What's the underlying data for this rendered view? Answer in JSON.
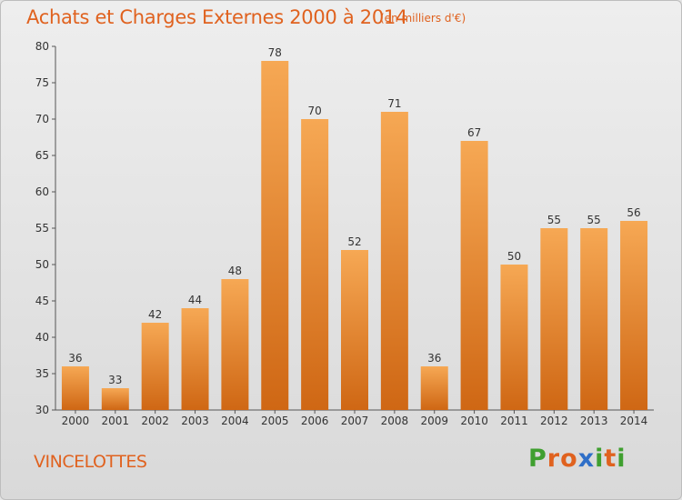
{
  "title": "Achats et Charges Externes 2000 à 2014",
  "unit": "(en milliers d'€)",
  "commune": "VINCELOTTES",
  "logo": {
    "letters": [
      "P",
      "r",
      "o",
      "x",
      "i",
      "t",
      "i"
    ]
  },
  "colors": {
    "bar_top": "#f6a854",
    "bar_bottom": "#cf6714",
    "title": "#e0621f",
    "axis": "#555555",
    "logo": [
      "#3f9f2f",
      "#e0621f",
      "#e0621f",
      "#2f6fc8",
      "#3f9f2f",
      "#e0621f",
      "#3f9f2f"
    ]
  },
  "chart_data": {
    "type": "bar",
    "title": "Achats et Charges Externes 2000 à 2014",
    "subtitle": "(en milliers d'€)",
    "categories": [
      "2000",
      "2001",
      "2002",
      "2003",
      "2004",
      "2005",
      "2006",
      "2007",
      "2008",
      "2009",
      "2010",
      "2011",
      "2012",
      "2013",
      "2014"
    ],
    "values": [
      36,
      33,
      42,
      44,
      48,
      78,
      70,
      52,
      71,
      36,
      67,
      50,
      55,
      55,
      56
    ],
    "ylim": [
      30,
      80
    ],
    "yticks": [
      30,
      35,
      40,
      45,
      50,
      55,
      60,
      65,
      70,
      75,
      80
    ],
    "xlabel": "",
    "ylabel": "",
    "grid": false,
    "data_labels": true
  }
}
